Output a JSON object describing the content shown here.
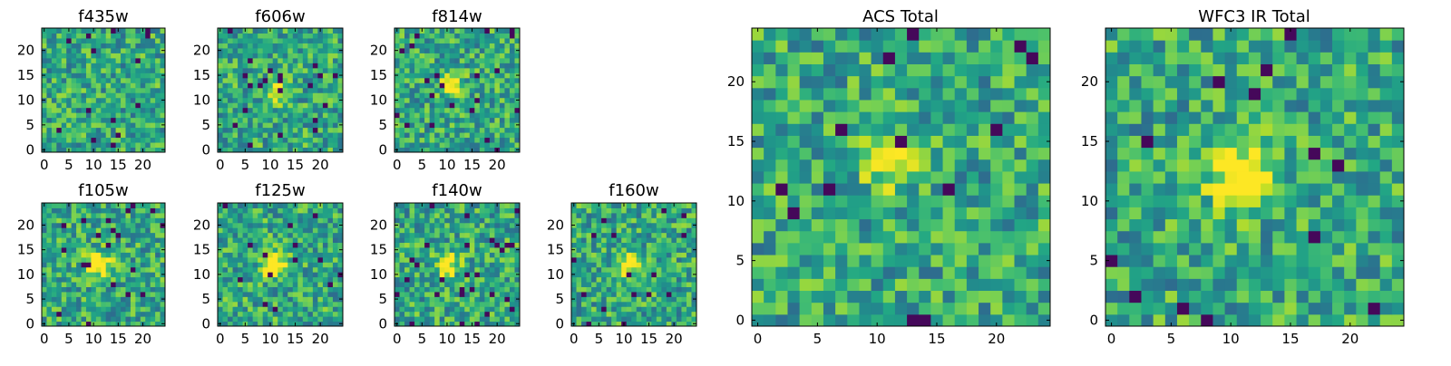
{
  "chart_data": [
    {
      "type": "heatmap",
      "title": "f435w",
      "colormap": "viridis",
      "grid_size": [
        25,
        25
      ],
      "xticks": [
        "0",
        "5",
        "10",
        "15",
        "20"
      ],
      "yticks": [
        "0",
        "5",
        "10",
        "15",
        "20"
      ],
      "features": [],
      "seed": 11
    },
    {
      "type": "heatmap",
      "title": "f606w",
      "colormap": "viridis",
      "grid_size": [
        25,
        25
      ],
      "xticks": [
        "0",
        "5",
        "10",
        "15",
        "20"
      ],
      "yticks": [
        "0",
        "5",
        "10",
        "15",
        "20"
      ],
      "features": [
        {
          "x": 11,
          "y": 12,
          "amp": 0.35,
          "sigma": 1.6
        }
      ],
      "seed": 23
    },
    {
      "type": "heatmap",
      "title": "f814w",
      "colormap": "viridis",
      "grid_size": [
        25,
        25
      ],
      "xticks": [
        "0",
        "5",
        "10",
        "15",
        "20"
      ],
      "yticks": [
        "0",
        "5",
        "10",
        "15",
        "20"
      ],
      "features": [
        {
          "x": 11,
          "y": 13,
          "amp": 0.55,
          "sigma": 1.5
        }
      ],
      "seed": 37
    },
    {
      "type": "heatmap",
      "title": "f105w",
      "colormap": "viridis",
      "grid_size": [
        25,
        25
      ],
      "xticks": [
        "0",
        "5",
        "10",
        "15",
        "20"
      ],
      "yticks": [
        "0",
        "5",
        "10",
        "15",
        "20"
      ],
      "features": [
        {
          "x": 11,
          "y": 12,
          "amp": 0.55,
          "sigma": 1.8
        }
      ],
      "seed": 41
    },
    {
      "type": "heatmap",
      "title": "f125w",
      "colormap": "viridis",
      "grid_size": [
        25,
        25
      ],
      "xticks": [
        "0",
        "5",
        "10",
        "15",
        "20"
      ],
      "yticks": [
        "0",
        "5",
        "10",
        "15",
        "20"
      ],
      "features": [
        {
          "x": 11,
          "y": 12,
          "amp": 0.55,
          "sigma": 1.8
        }
      ],
      "seed": 53
    },
    {
      "type": "heatmap",
      "title": "f140w",
      "colormap": "viridis",
      "grid_size": [
        25,
        25
      ],
      "xticks": [
        "0",
        "5",
        "10",
        "15",
        "20"
      ],
      "yticks": [
        "0",
        "5",
        "10",
        "15",
        "20"
      ],
      "features": [
        {
          "x": 10,
          "y": 12,
          "amp": 0.5,
          "sigma": 1.6
        }
      ],
      "seed": 67
    },
    {
      "type": "heatmap",
      "title": "f160w",
      "colormap": "viridis",
      "grid_size": [
        25,
        25
      ],
      "xticks": [
        "0",
        "5",
        "10",
        "15",
        "20"
      ],
      "yticks": [
        "0",
        "5",
        "10",
        "15",
        "20"
      ],
      "features": [
        {
          "x": 11,
          "y": 12,
          "amp": 0.5,
          "sigma": 1.7
        }
      ],
      "seed": 79
    },
    {
      "type": "heatmap",
      "title": "ACS Total",
      "colormap": "viridis",
      "grid_size": [
        25,
        25
      ],
      "xticks": [
        "0",
        "5",
        "10",
        "15",
        "20"
      ],
      "yticks": [
        "0",
        "5",
        "10",
        "15",
        "20"
      ],
      "features": [
        {
          "x": 11,
          "y": 13,
          "amp": 0.45,
          "sigma": 1.4
        }
      ],
      "seed": 97
    },
    {
      "type": "heatmap",
      "title": "WFC3 IR Total",
      "colormap": "viridis",
      "grid_size": [
        25,
        25
      ],
      "xticks": [
        "0",
        "5",
        "10",
        "15",
        "20"
      ],
      "yticks": [
        "0",
        "5",
        "10",
        "15",
        "20"
      ],
      "features": [
        {
          "x": 11,
          "y": 12,
          "amp": 0.7,
          "sigma": 1.8
        }
      ],
      "seed": 113
    }
  ]
}
